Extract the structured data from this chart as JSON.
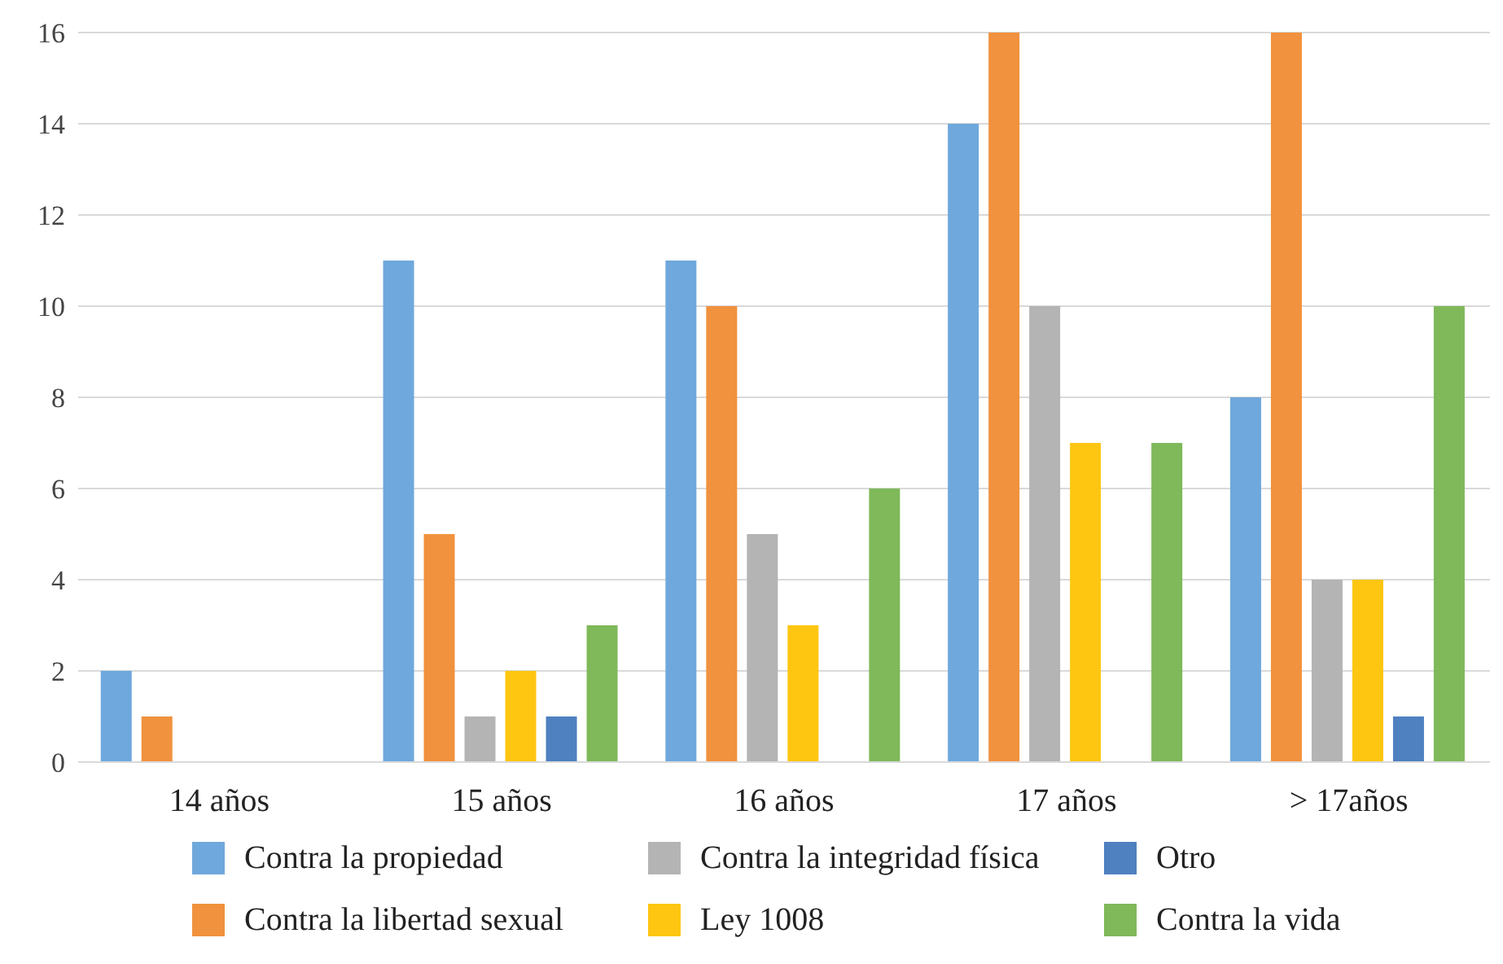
{
  "chart_data": {
    "type": "bar",
    "categories": [
      "14 años",
      "15 años",
      "16 años",
      "17 años",
      "> 17años"
    ],
    "series": [
      {
        "name": "Contra la propiedad",
        "color": "#6fa8dc",
        "values": [
          2,
          11,
          11,
          14,
          8
        ]
      },
      {
        "name": "Contra la libertad sexual",
        "color": "#f0923e",
        "values": [
          1,
          5,
          10,
          16,
          16
        ]
      },
      {
        "name": "Contra la integridad física",
        "color": "#b4b4b4",
        "values": [
          0,
          1,
          5,
          10,
          4
        ]
      },
      {
        "name": "Ley 1008",
        "color": "#fec611",
        "values": [
          0,
          2,
          3,
          7,
          4
        ]
      },
      {
        "name": "Otro",
        "color": "#4f80c0",
        "values": [
          0,
          1,
          0,
          0,
          1
        ]
      },
      {
        "name": "Contra la vida",
        "color": "#7fb95a",
        "values": [
          0,
          3,
          6,
          7,
          10
        ]
      }
    ],
    "ylim": [
      0,
      16
    ],
    "yticks": [
      0,
      2,
      4,
      6,
      8,
      10,
      12,
      14,
      16
    ],
    "grid": "y",
    "legend": "bottom"
  }
}
